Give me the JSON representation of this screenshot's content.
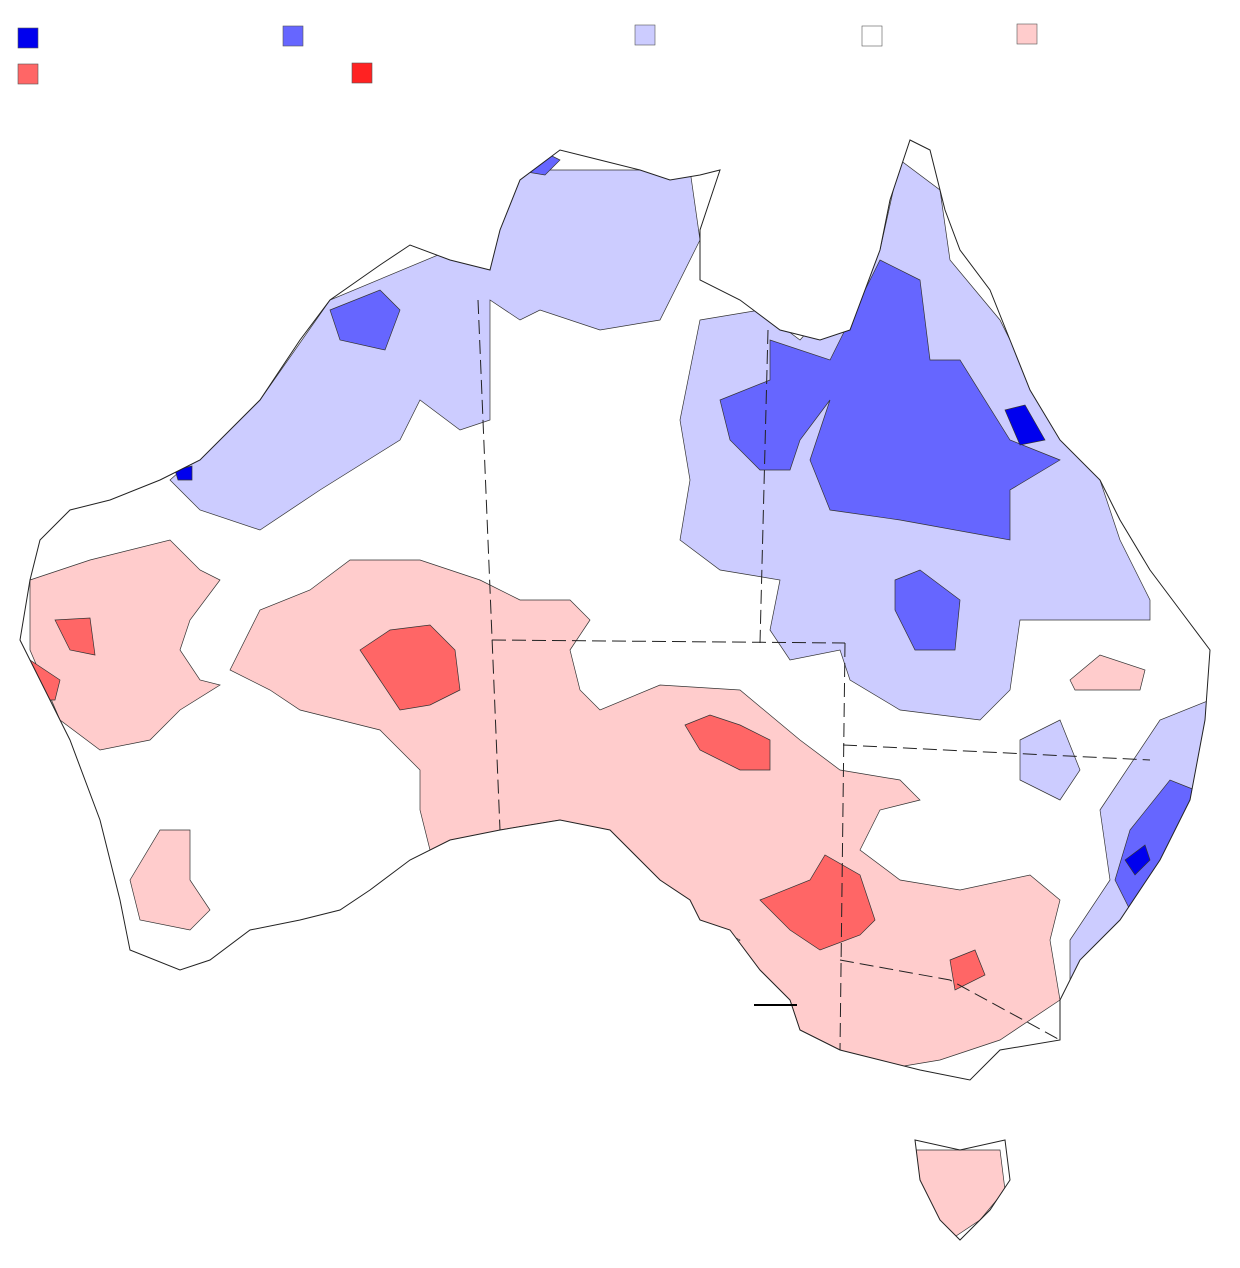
{
  "legend": {
    "colors": [
      "#0000ee",
      "#6666ff",
      "#ccccff",
      "#ffffff",
      "#ffcccc",
      "#ff6666",
      "#ff2222"
    ]
  }
}
